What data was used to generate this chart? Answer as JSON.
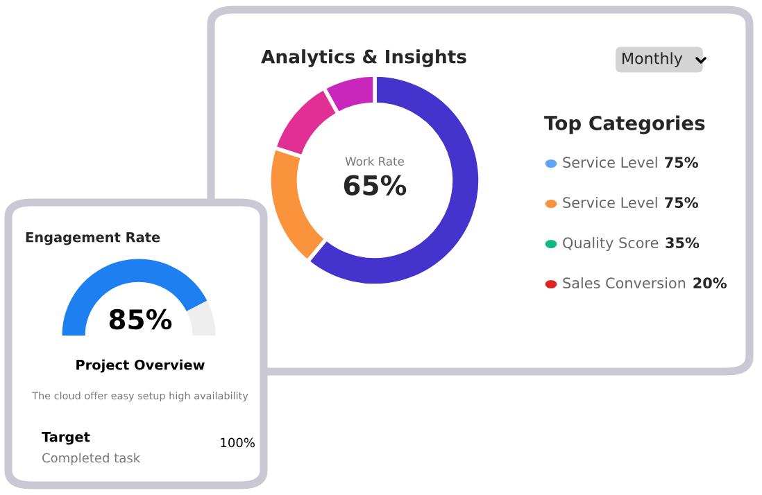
{
  "chart_data": [
    {
      "type": "donut",
      "title": "Analytics & Insights",
      "categories": [
        null,
        null,
        null,
        null
      ],
      "values": [
        61,
        19,
        12,
        8
      ],
      "colors": [
        "#4433cc",
        "#fb923c",
        "#e22f96",
        "#c926bb"
      ],
      "annotations": [
        "Monthly",
        "Work Rate",
        "65%"
      ]
    },
    {
      "type": "other",
      "title": "Top Categories",
      "categories": [
        "Service Level",
        "Service Level",
        "Quality Score",
        "Sales Conversion"
      ],
      "values": [
        75,
        75,
        35,
        20
      ],
      "value_labels": [
        "75%",
        "75%",
        "35%",
        "20%"
      ],
      "colors": [
        "#60a5fa",
        "#fb923c",
        "#10b981",
        "#dc2626"
      ]
    },
    {
      "type": "donut",
      "title": "Engagement Rate",
      "categories": [
        null,
        null
      ],
      "values": [
        85,
        15
      ],
      "colors": [
        "#1d7ff0",
        "#eeeeee"
      ],
      "annotations": [
        "85%",
        "Project Overview",
        "The cloud offer easy setup high availability",
        "Target",
        "Completed task",
        "100%"
      ]
    }
  ]
}
